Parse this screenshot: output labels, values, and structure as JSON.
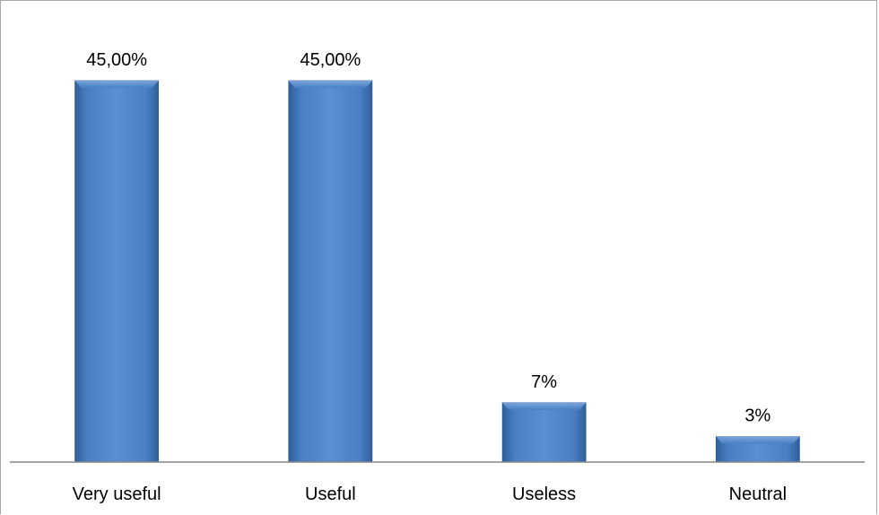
{
  "chart_data": {
    "type": "bar",
    "categories": [
      "Very useful",
      "Useful",
      "Useless",
      "Neutral"
    ],
    "values": [
      45,
      45,
      7,
      3
    ],
    "data_labels": [
      "45,00%",
      "45,00%",
      "7%",
      "3%"
    ],
    "ylim": [
      0,
      50
    ],
    "grid": false,
    "legend": "none",
    "bar_color": "#4a7ebf"
  }
}
